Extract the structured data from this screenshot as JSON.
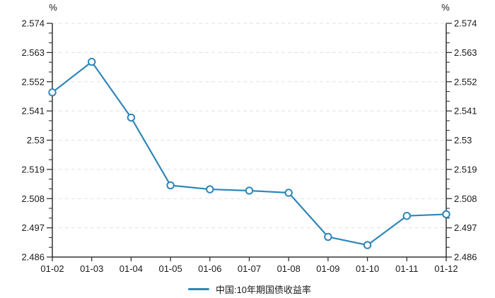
{
  "axes": {
    "left_unit": "%",
    "right_unit": "%"
  },
  "legend": {
    "series_label": "中国:10年期国债收益率"
  },
  "colors": {
    "line": "#2e86b9",
    "marker_fill": "#ffffff",
    "grid": "#e0e0e0",
    "axis": "#333333",
    "text": "#1a1a1a",
    "background": "#ffffff"
  },
  "chart_data": {
    "type": "line",
    "title": "",
    "xlabel": "",
    "ylabel": "%",
    "categories": [
      "01-02",
      "01-03",
      "01-04",
      "01-05",
      "01-06",
      "01-07",
      "01-08",
      "01-09",
      "01-10",
      "01-11",
      "01-12"
    ],
    "series": [
      {
        "name": "中国:10年期国债收益率",
        "values": [
          2.548,
          2.5595,
          2.5385,
          2.513,
          2.5115,
          2.511,
          2.5102,
          2.4936,
          2.4905,
          2.5015,
          2.5021
        ],
        "color": "#2e86b9",
        "marker": "open-circle"
      }
    ],
    "ylim": [
      2.486,
      2.574
    ],
    "y_major_step": 0.011,
    "y_minor_divisions": 3,
    "y_tick_labels": [
      "2.486",
      "2.497",
      "2.508",
      "2.519",
      "2.53",
      "2.541",
      "2.552",
      "2.563",
      "2.574"
    ],
    "axes_mirrored": true,
    "grid": "horizontal-dashed",
    "vertical_grid": false,
    "legend_position": "bottom-center"
  }
}
